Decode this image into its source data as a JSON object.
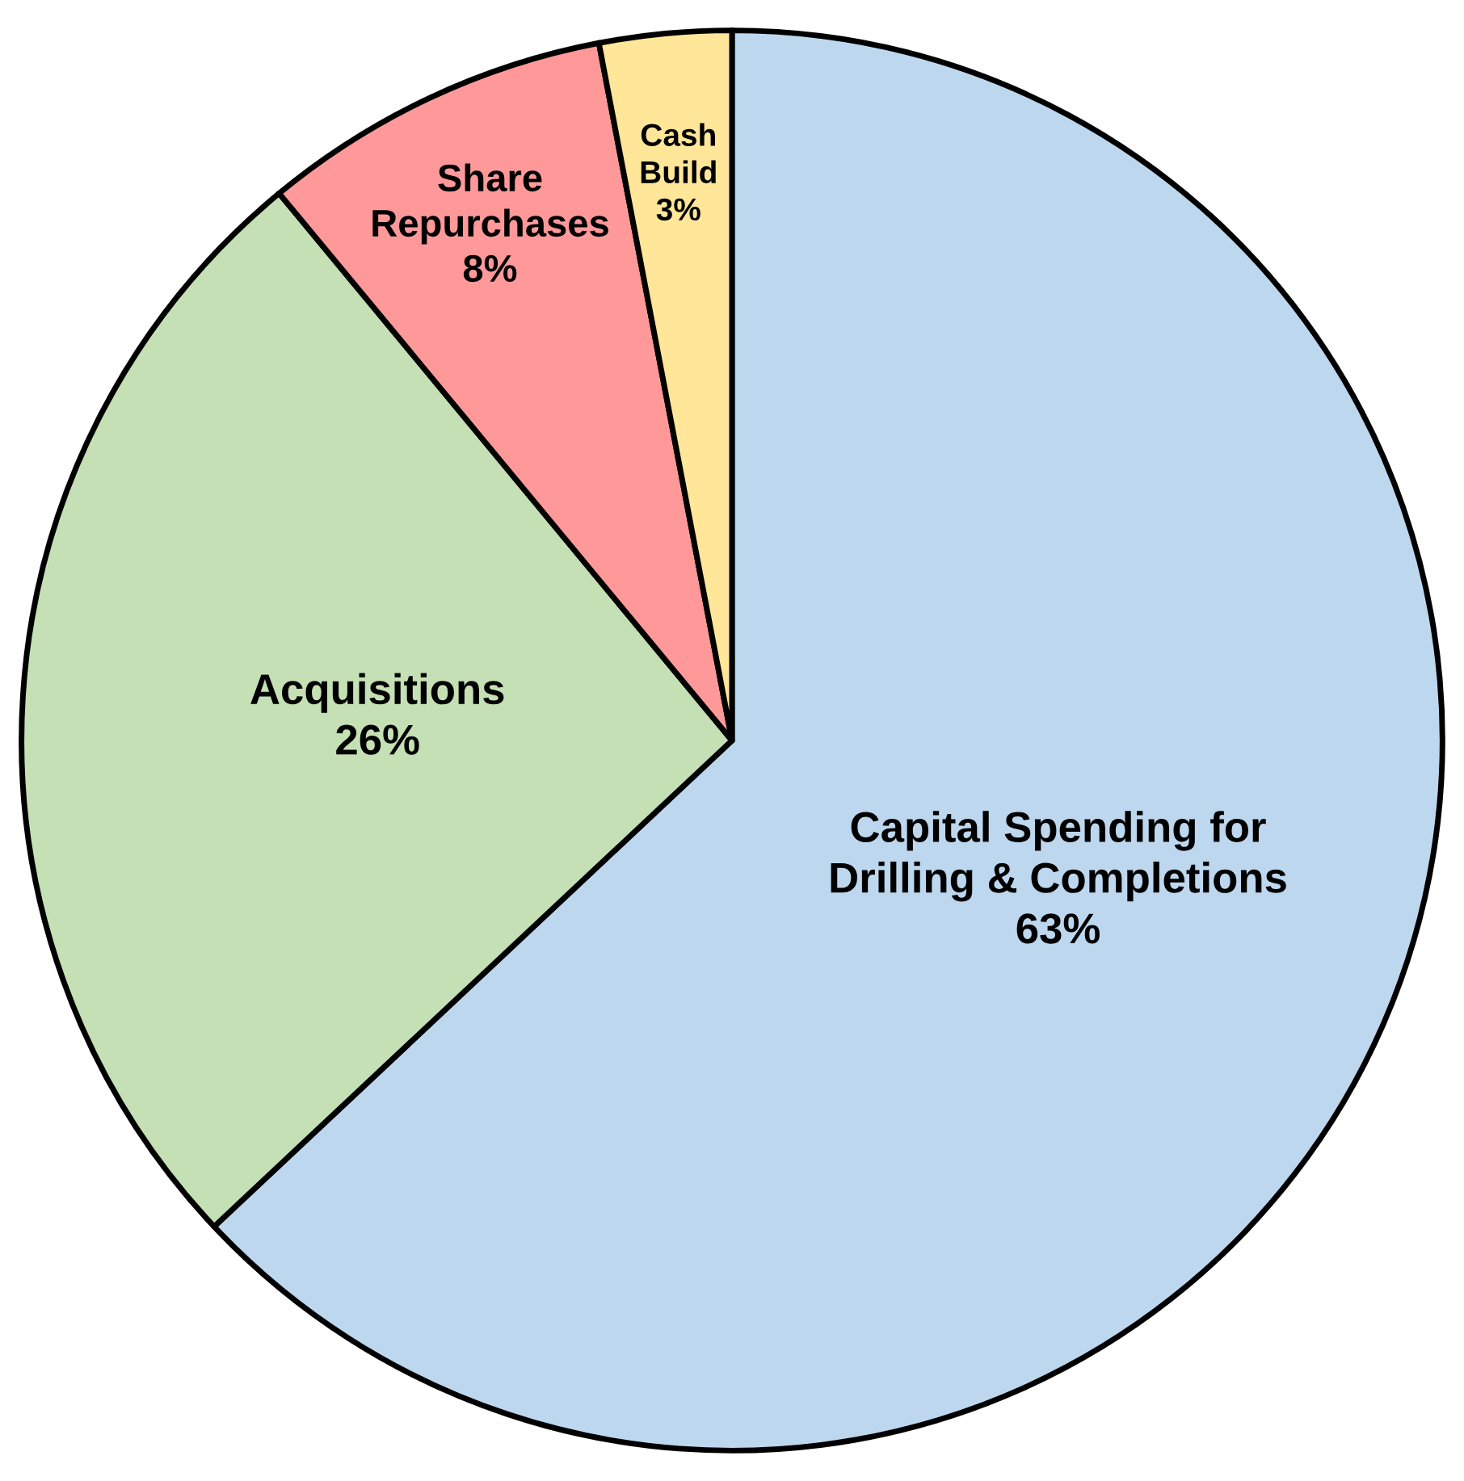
{
  "chart_data": {
    "type": "pie",
    "categories": [
      "Capital Spending for\nDrilling & Completions",
      "Acquisitions",
      "Share\nRepurchases",
      "Cash\nBuild"
    ],
    "values": [
      63,
      26,
      8,
      3
    ],
    "value_labels": [
      "63%",
      "26%",
      "8%",
      "3%"
    ],
    "colors": [
      "#bdd7ee",
      "#c5e0b4",
      "#ff9999",
      "#ffe699"
    ],
    "legend": false
  }
}
